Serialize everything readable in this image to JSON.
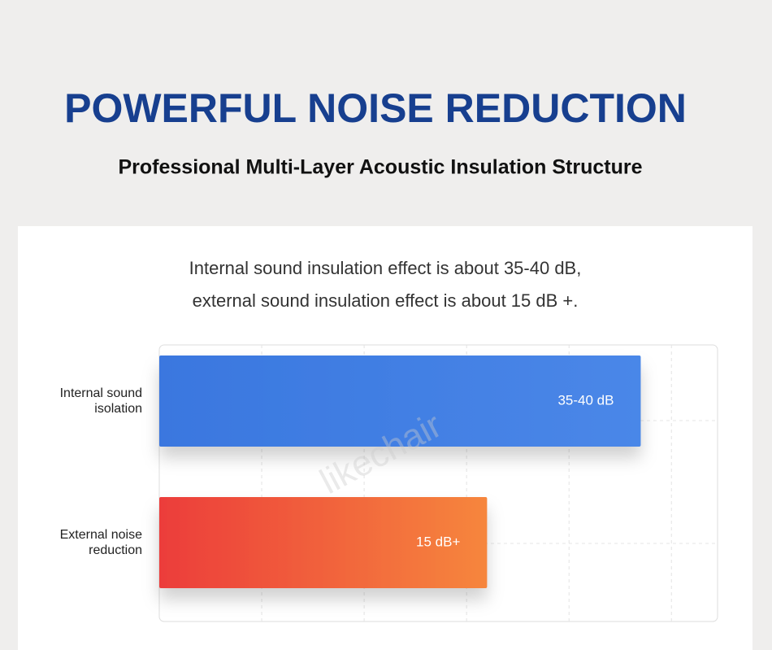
{
  "header": {
    "title": "POWERFUL NOISE REDUCTION",
    "subtitle": "Professional Multi-Layer Acoustic Insulation Structure"
  },
  "description": [
    "Internal sound insulation effect is about 35-40 dB,",
    "external sound insulation effect is about 15 dB +."
  ],
  "watermark": "likechair",
  "chart_data": {
    "type": "bar",
    "orientation": "horizontal",
    "categories": [
      "Internal sound isolation",
      "External noise reduction"
    ],
    "values": [
      4.7,
      3.2
    ],
    "bar_labels": [
      "35-40 dB",
      "15 dB+"
    ],
    "gradients": [
      [
        "#3a77df",
        "#4a87e8"
      ],
      [
        "#ec3d3a",
        "#f6863d"
      ]
    ],
    "xlim": [
      0,
      5.45
    ],
    "xgrid": [
      1,
      2,
      3,
      4,
      5
    ],
    "grid": true
  }
}
